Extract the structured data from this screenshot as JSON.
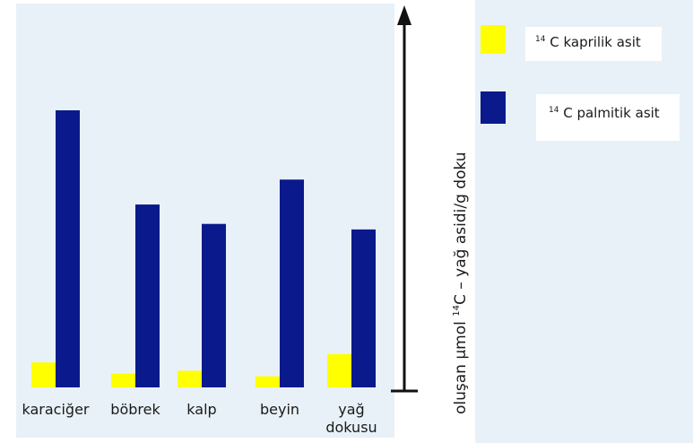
{
  "chart_data": {
    "type": "bar",
    "categories": [
      [
        "karaciğer"
      ],
      [
        "böbrek"
      ],
      [
        "kalp"
      ],
      [
        "beyin"
      ],
      [
        "yağ",
        "dokusu"
      ]
    ],
    "series": [
      {
        "name_super": "14",
        "name_rest": " C kaprilik asit",
        "color": "#ffff00",
        "values": [
          9,
          5,
          6,
          4,
          12
        ]
      },
      {
        "name_super": "14",
        "name_rest": " C palmitik asit",
        "color": "#0a1a8c",
        "values": [
          100,
          66,
          59,
          75,
          57
        ]
      }
    ],
    "ylabel_pre": "oluşan µmol ",
    "ylabel_super": "14",
    "ylabel_post": "C – yağ asidi/g doku",
    "ylim": [
      0,
      100
    ],
    "y_ticks_shown": false,
    "grid": false,
    "legend_position": "top-right",
    "background_color": "#e8f1f7"
  }
}
